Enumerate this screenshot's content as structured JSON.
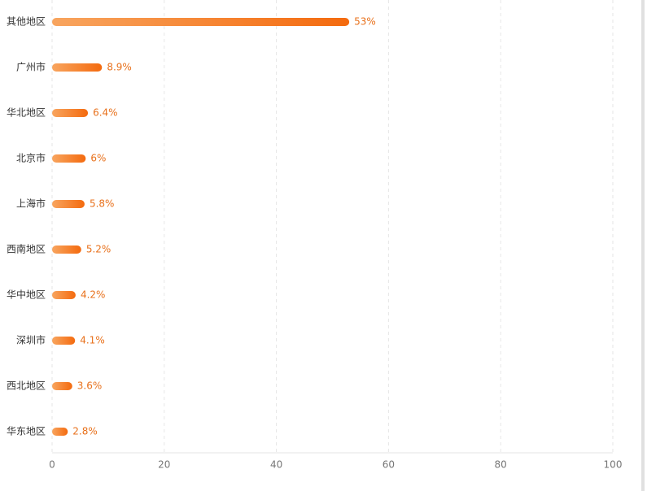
{
  "chart_data": {
    "type": "hbar",
    "categories": [
      "其他地区",
      "广州市",
      "华北地区",
      "北京市",
      "上海市",
      "西南地区",
      "华中地区",
      "深圳市",
      "西北地区",
      "华东地区"
    ],
    "values": [
      53,
      8.9,
      6.4,
      6,
      5.8,
      5.2,
      4.2,
      4.1,
      3.6,
      2.8
    ],
    "value_labels": [
      "53%",
      "8.9%",
      "6.4%",
      "6%",
      "5.8%",
      "5.2%",
      "4.2%",
      "4.1%",
      "3.6%",
      "2.8%"
    ],
    "gradient": [
      "#f8a55f",
      "#f46a0e"
    ],
    "xlim": [
      0,
      100
    ],
    "xticks": [
      0,
      20,
      40,
      60,
      80,
      100
    ],
    "grid": true
  }
}
